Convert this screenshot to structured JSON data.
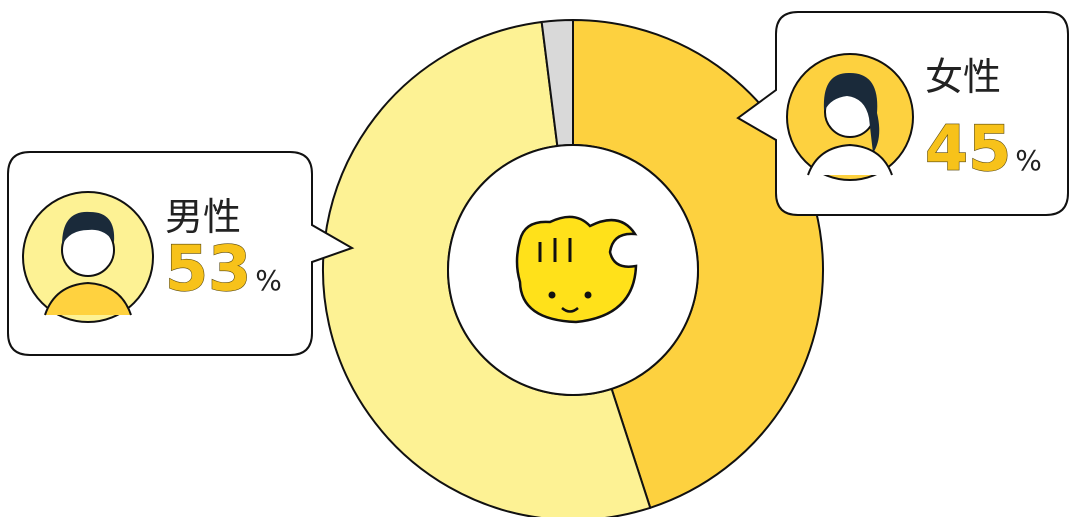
{
  "chart_data": {
    "type": "pie",
    "donut": true,
    "categories": [
      "男性",
      "女性",
      null
    ],
    "values": [
      53,
      45,
      2
    ],
    "colors": [
      "#fdf294",
      "#fdd13f",
      "#d9d9d9"
    ],
    "unit": "%"
  }
}
